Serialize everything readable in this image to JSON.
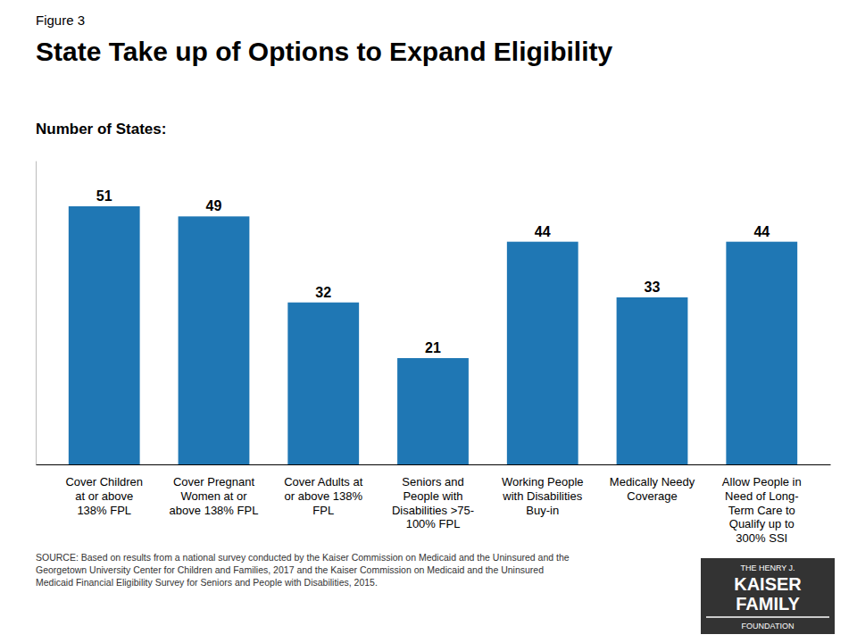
{
  "chart_data": {
    "type": "bar",
    "title": "State Take up of Options to Expand Eligibility",
    "subtitle": "Number of States:",
    "categories": [
      "Cover Children\nat or above\n138% FPL",
      "Cover Pregnant\nWomen at or\nabove 138% FPL",
      "Cover Adults at\nor above 138%\nFPL",
      "Seniors and\nPeople with\nDisabilities >75-\n100% FPL",
      "Working People\nwith Disabilities\nBuy-in",
      "Medically Needy\nCoverage",
      "Allow People in\nNeed of Long-\nTerm Care to\nQualify up to\n300% SSI"
    ],
    "values": [
      51,
      49,
      32,
      21,
      44,
      33,
      44
    ],
    "ylim": [
      0,
      60
    ],
    "data_labels": true,
    "tick_labels": "x",
    "annotations": [
      "Figure 3",
      "SOURCE: Based on results from a national survey conducted  by the Kaiser Commission on Medicaid and the Uninsured and the\nGeorgetown  University Center for Children and Families, 2017 and the Kaiser Commission on Medicaid and the Uninsured\nMedicaid Financial Eligibility Survey for Seniors and People with Disabilities, 2015.",
      "THE HENRY J.",
      "KAISER",
      "FAMILY",
      "FOUNDATION"
    ]
  }
}
